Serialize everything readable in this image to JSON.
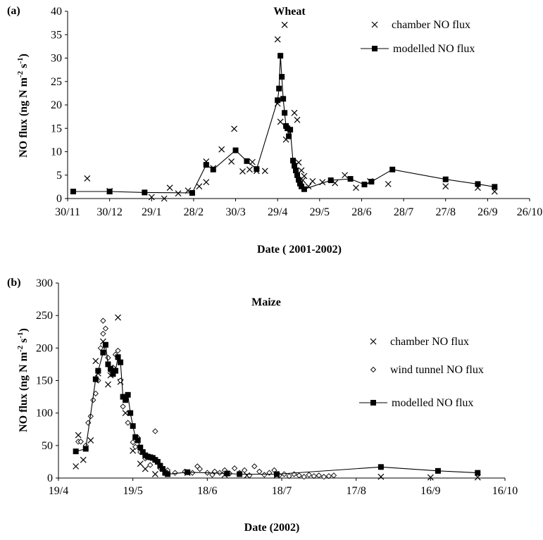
{
  "panels": {
    "a": {
      "label": "(a)"
    },
    "b": {
      "label": "(b)"
    }
  },
  "chart_data": [
    {
      "type": "scatter",
      "title": "Wheat",
      "xlabel": "Date ( 2001-2002)",
      "ylabel": "NO flux (ng N m-2 s-1)",
      "ylabel_parts": {
        "main": "NO flux (ng N m",
        "sup1": "-2",
        "mid": " s",
        "sup2": "-1",
        "end": ")"
      },
      "x_ticks": [
        "30/11",
        "30/12",
        "29/1",
        "28/2",
        "30/3",
        "29/4",
        "29/5",
        "28/6",
        "28/7",
        "27/8",
        "26/9",
        "26/10"
      ],
      "y_ticks": [
        0,
        5,
        10,
        15,
        20,
        25,
        30,
        35,
        40
      ],
      "xlim": [
        "2001-11-30",
        "2002-10-26"
      ],
      "ylim": [
        0,
        40
      ],
      "legend_position": "top-right",
      "grid": false,
      "series": [
        {
          "name": "chamber NO flux",
          "marker": "x",
          "points": [
            [
              "2001-12-14",
              4.3
            ],
            [
              "2001-12-30",
              1.6
            ],
            [
              "2002-01-29",
              0.3
            ],
            [
              "2002-02-07",
              0.0
            ],
            [
              "2002-02-11",
              2.3
            ],
            [
              "2002-02-17",
              1.1
            ],
            [
              "2002-02-24",
              1.7
            ],
            [
              "2002-03-04",
              2.6
            ],
            [
              "2002-03-09",
              3.5
            ],
            [
              "2002-03-09",
              7.9
            ],
            [
              "2002-03-14",
              6.5
            ],
            [
              "2002-03-20",
              10.5
            ],
            [
              "2002-03-27",
              7.9
            ],
            [
              "2002-03-29",
              14.9
            ],
            [
              "2002-04-04",
              5.8
            ],
            [
              "2002-04-09",
              6.2
            ],
            [
              "2002-04-11",
              7.8
            ],
            [
              "2002-04-14",
              5.9
            ],
            [
              "2002-04-20",
              5.9
            ],
            [
              "2002-04-29",
              34.0
            ],
            [
              "2002-04-29",
              20.3
            ],
            [
              "2002-05-01",
              16.4
            ],
            [
              "2002-05-04",
              37.1
            ],
            [
              "2002-05-05",
              12.6
            ],
            [
              "2002-05-11",
              18.3
            ],
            [
              "2002-05-13",
              16.8
            ],
            [
              "2002-05-14",
              7.7
            ],
            [
              "2002-05-16",
              6.0
            ],
            [
              "2002-05-17",
              3.9
            ],
            [
              "2002-05-18",
              4.8
            ],
            [
              "2002-05-21",
              2.6
            ],
            [
              "2002-05-24",
              3.7
            ],
            [
              "2002-05-31",
              3.5
            ],
            [
              "2002-06-09",
              3.3
            ],
            [
              "2002-06-16",
              5.0
            ],
            [
              "2002-06-24",
              2.3
            ],
            [
              "2002-07-04",
              3.7
            ],
            [
              "2002-07-17",
              3.1
            ],
            [
              "2002-08-27",
              2.6
            ],
            [
              "2002-09-19",
              2.3
            ],
            [
              "2002-10-01",
              1.5
            ]
          ]
        },
        {
          "name": "modelled NO flux",
          "marker": "square-line",
          "points": [
            [
              "2001-12-04",
              1.5
            ],
            [
              "2001-12-30",
              1.5
            ],
            [
              "2002-01-24",
              1.3
            ],
            [
              "2002-02-27",
              1.2
            ],
            [
              "2002-03-09",
              7.2
            ],
            [
              "2002-03-14",
              6.2
            ],
            [
              "2002-03-30",
              10.3
            ],
            [
              "2002-04-07",
              8.0
            ],
            [
              "2002-04-14",
              6.3
            ],
            [
              "2002-04-29",
              21.0
            ],
            [
              "2002-04-30",
              23.5
            ],
            [
              "2002-05-01",
              30.5
            ],
            [
              "2002-05-02",
              26.0
            ],
            [
              "2002-05-03",
              21.3
            ],
            [
              "2002-05-04",
              18.3
            ],
            [
              "2002-05-05",
              15.5
            ],
            [
              "2002-05-06",
              15.0
            ],
            [
              "2002-05-07",
              13.3
            ],
            [
              "2002-05-08",
              14.7
            ],
            [
              "2002-05-10",
              8.1
            ],
            [
              "2002-05-11",
              7.0
            ],
            [
              "2002-05-12",
              6.0
            ],
            [
              "2002-05-13",
              5.0
            ],
            [
              "2002-05-14",
              4.0
            ],
            [
              "2002-05-15",
              3.2
            ],
            [
              "2002-05-16",
              2.6
            ],
            [
              "2002-05-18",
              2.0
            ],
            [
              "2002-06-06",
              3.9
            ],
            [
              "2002-06-20",
              4.2
            ],
            [
              "2002-06-30",
              3.0
            ],
            [
              "2002-07-05",
              3.6
            ],
            [
              "2002-07-20",
              6.2
            ],
            [
              "2002-08-27",
              4.1
            ],
            [
              "2002-09-19",
              3.1
            ],
            [
              "2002-10-01",
              2.5
            ]
          ]
        }
      ]
    },
    {
      "type": "scatter",
      "title": "Maize",
      "xlabel": "Date (2002)",
      "ylabel": "NO flux (ng N m-2 s-1)",
      "ylabel_parts": {
        "main": "NO flux (ng N m",
        "sup1": "-2",
        "mid": " s",
        "sup2": "-1",
        "end": ")"
      },
      "x_ticks": [
        "19/4",
        "19/5",
        "18/6",
        "18/7",
        "17/8",
        "16/9",
        "16/10"
      ],
      "y_ticks": [
        0,
        50,
        100,
        150,
        200,
        250,
        300
      ],
      "xlim": [
        "2002-04-19",
        "2002-10-16"
      ],
      "ylim": [
        0,
        300
      ],
      "legend_position": "right",
      "grid": false,
      "series": [
        {
          "name": "chamber NO flux",
          "marker": "x",
          "points": [
            [
              "2002-04-26",
              18
            ],
            [
              "2002-04-27",
              66
            ],
            [
              "2002-04-29",
              28
            ],
            [
              "2002-05-02",
              58
            ],
            [
              "2002-05-04",
              180
            ],
            [
              "2002-05-05",
              161
            ],
            [
              "2002-05-07",
              210
            ],
            [
              "2002-05-09",
              144
            ],
            [
              "2002-05-10",
              158
            ],
            [
              "2002-05-13",
              247
            ],
            [
              "2002-05-14",
              148
            ],
            [
              "2002-05-16",
              100
            ],
            [
              "2002-05-19",
              42
            ],
            [
              "2002-05-22",
              22
            ],
            [
              "2002-05-24",
              14
            ],
            [
              "2002-05-28",
              6
            ],
            [
              "2002-06-10",
              8
            ],
            [
              "2002-06-25",
              5
            ],
            [
              "2002-07-04",
              4
            ],
            [
              "2002-07-16",
              4
            ],
            [
              "2002-08-27",
              2
            ],
            [
              "2002-09-16",
              1
            ],
            [
              "2002-10-05",
              1
            ]
          ]
        },
        {
          "name": "wind tunnel NO flux",
          "marker": "diamond",
          "points": [
            [
              "2002-04-27",
              56
            ],
            [
              "2002-04-28",
              56
            ],
            [
              "2002-04-30",
              50
            ],
            [
              "2002-05-01",
              85
            ],
            [
              "2002-05-02",
              95
            ],
            [
              "2002-05-03",
              120
            ],
            [
              "2002-05-04",
              130
            ],
            [
              "2002-05-05",
              150
            ],
            [
              "2002-05-06",
              200
            ],
            [
              "2002-05-07",
              222
            ],
            [
              "2002-05-07",
              242
            ],
            [
              "2002-05-08",
              230
            ],
            [
              "2002-05-09",
              185
            ],
            [
              "2002-05-10",
              165
            ],
            [
              "2002-05-11",
              170
            ],
            [
              "2002-05-12",
              190
            ],
            [
              "2002-05-13",
              196
            ],
            [
              "2002-05-14",
              150
            ],
            [
              "2002-05-15",
              110
            ],
            [
              "2002-05-17",
              85
            ],
            [
              "2002-05-19",
              55
            ],
            [
              "2002-05-20",
              48
            ],
            [
              "2002-05-21",
              62
            ],
            [
              "2002-05-22",
              40
            ],
            [
              "2002-05-24",
              30
            ],
            [
              "2002-05-26",
              20
            ],
            [
              "2002-05-28",
              72
            ],
            [
              "2002-05-30",
              15
            ],
            [
              "2002-06-02",
              12
            ],
            [
              "2002-06-05",
              8
            ],
            [
              "2002-06-09",
              10
            ],
            [
              "2002-06-12",
              8
            ],
            [
              "2002-06-14",
              18
            ],
            [
              "2002-06-15",
              14
            ],
            [
              "2002-06-18",
              8
            ],
            [
              "2002-06-20",
              5
            ],
            [
              "2002-06-21",
              10
            ],
            [
              "2002-06-23",
              8
            ],
            [
              "2002-06-25",
              12
            ],
            [
              "2002-06-27",
              7
            ],
            [
              "2002-06-29",
              15
            ],
            [
              "2002-07-01",
              8
            ],
            [
              "2002-07-03",
              12
            ],
            [
              "2002-07-05",
              4
            ],
            [
              "2002-07-07",
              18
            ],
            [
              "2002-07-09",
              10
            ],
            [
              "2002-07-11",
              5
            ],
            [
              "2002-07-13",
              8
            ],
            [
              "2002-07-15",
              12
            ],
            [
              "2002-07-17",
              4
            ],
            [
              "2002-07-19",
              6
            ],
            [
              "2002-07-21",
              3
            ],
            [
              "2002-07-23",
              6
            ],
            [
              "2002-07-25",
              4
            ],
            [
              "2002-07-27",
              2
            ],
            [
              "2002-07-29",
              5
            ],
            [
              "2002-07-31",
              3
            ],
            [
              "2002-08-02",
              4
            ],
            [
              "2002-08-04",
              2
            ],
            [
              "2002-08-06",
              3
            ],
            [
              "2002-08-08",
              4
            ]
          ]
        },
        {
          "name": "modelled NO flux",
          "marker": "square-line",
          "points": [
            [
              "2002-04-26",
              41
            ],
            [
              "2002-04-30",
              45
            ],
            [
              "2002-05-04",
              152
            ],
            [
              "2002-05-05",
              165
            ],
            [
              "2002-05-07",
              193
            ],
            [
              "2002-05-08",
              205
            ],
            [
              "2002-05-09",
              175
            ],
            [
              "2002-05-10",
              168
            ],
            [
              "2002-05-11",
              160
            ],
            [
              "2002-05-12",
              165
            ],
            [
              "2002-05-13",
              186
            ],
            [
              "2002-05-14",
              178
            ],
            [
              "2002-05-15",
              125
            ],
            [
              "2002-05-16",
              120
            ],
            [
              "2002-05-17",
              128
            ],
            [
              "2002-05-18",
              100
            ],
            [
              "2002-05-19",
              80
            ],
            [
              "2002-05-20",
              63
            ],
            [
              "2002-05-21",
              58
            ],
            [
              "2002-05-22",
              47
            ],
            [
              "2002-05-23",
              40
            ],
            [
              "2002-05-24",
              35
            ],
            [
              "2002-05-25",
              33
            ],
            [
              "2002-05-26",
              32
            ],
            [
              "2002-05-27",
              31
            ],
            [
              "2002-05-28",
              28
            ],
            [
              "2002-05-29",
              25
            ],
            [
              "2002-05-30",
              19
            ],
            [
              "2002-05-31",
              14
            ],
            [
              "2002-06-01",
              8
            ],
            [
              "2002-06-02",
              6
            ],
            [
              "2002-06-10",
              9
            ],
            [
              "2002-06-26",
              7
            ],
            [
              "2002-07-01",
              6
            ],
            [
              "2002-07-16",
              6
            ],
            [
              "2002-08-27",
              17
            ],
            [
              "2002-09-19",
              11
            ],
            [
              "2002-10-05",
              8
            ]
          ]
        }
      ]
    }
  ]
}
